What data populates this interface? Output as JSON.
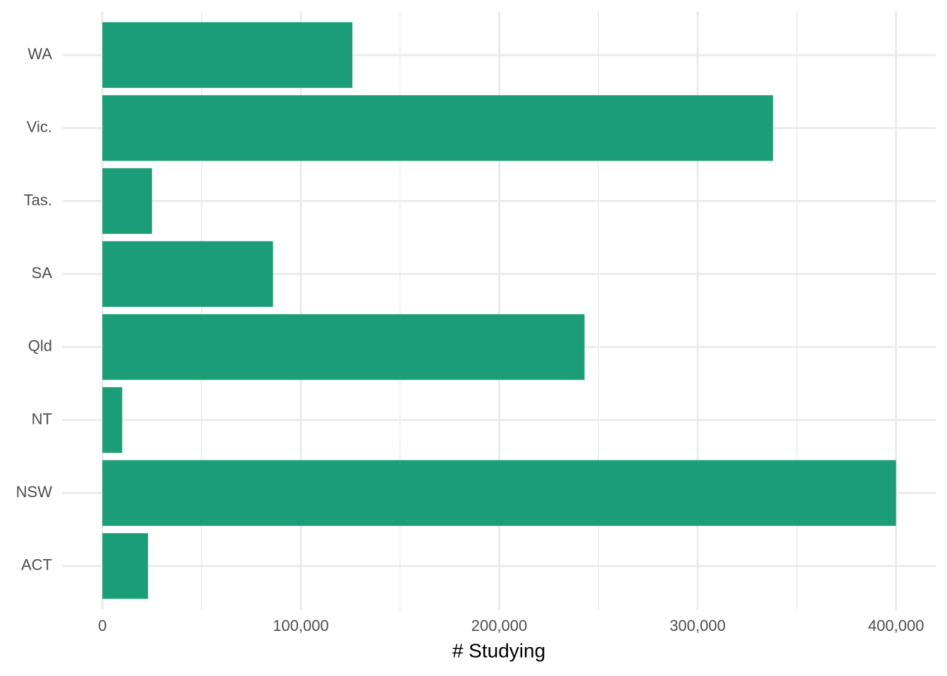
{
  "chart_data": {
    "type": "bar",
    "orientation": "horizontal",
    "x_label": "# Studying",
    "categories": [
      "ACT",
      "NSW",
      "NT",
      "Qld",
      "SA",
      "Tas.",
      "Vic.",
      "WA"
    ],
    "values": [
      23000,
      400000,
      10000,
      243000,
      86000,
      25000,
      338000,
      126000
    ],
    "color": "#1b9e77",
    "xlim": [
      -20000,
      420000
    ],
    "xticks": [
      0,
      {
        "value": 100000,
        "label": "100,000"
      },
      {
        "value": 200000,
        "label": "200,000"
      },
      {
        "value": 300000,
        "label": "300,000"
      },
      {
        "value": 400000,
        "label": "400,000"
      }
    ],
    "xminorticks": [
      50000,
      150000,
      250000,
      350000
    ],
    "grid": true
  }
}
